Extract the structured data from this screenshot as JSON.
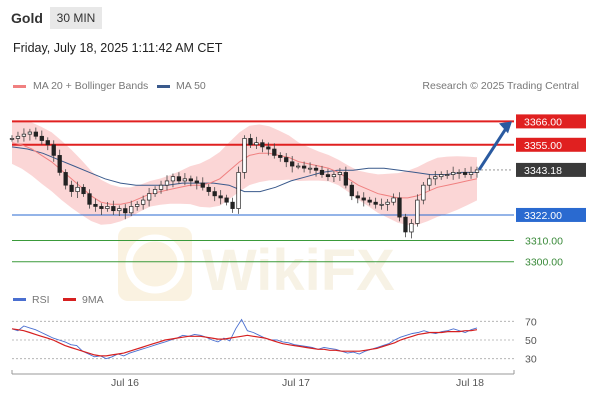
{
  "header": {
    "title": "Gold",
    "timeframe": "30 MIN"
  },
  "timestamp": "Friday, July 18, 2025 1:11:42 AM CET",
  "legend": {
    "ma20_label": "MA 20 + Bollinger Bands",
    "ma50_label": "MA 50",
    "ma20_color": "#f08080",
    "ma50_color": "#3a5a8c",
    "copyright": "Research © 2025 Trading Central"
  },
  "rsi_legend": {
    "rsi_label": "RSI",
    "ma_label": "9MA",
    "rsi_color": "#4a6fd0",
    "ma_color": "#d62020"
  },
  "watermark": "WikiFX",
  "chart_data": [
    {
      "type": "candlestick",
      "title": "Gold 30 MIN",
      "x_tick_labels": [
        "Jul 16",
        "Jul 17",
        "Jul 18"
      ],
      "current_price": {
        "value": 3343.18,
        "label": "3343.18"
      },
      "levels": [
        {
          "value": 3366.0,
          "label": "3366.00",
          "kind": "resistance",
          "color": "#e02020"
        },
        {
          "value": 3355.0,
          "label": "3355.00",
          "kind": "resistance",
          "color": "#e02020"
        },
        {
          "value": 3322.0,
          "label": "3322.00",
          "kind": "pivot",
          "color": "#2a6ad0"
        },
        {
          "value": 3310.0,
          "label": "3310.00",
          "kind": "support",
          "color": "#3a9a3a"
        },
        {
          "value": 3300.0,
          "label": "3300.00",
          "kind": "support",
          "color": "#3a9a3a"
        }
      ],
      "ylim": [
        3290,
        3377
      ],
      "close_series": [
        3358,
        3359,
        3360,
        3361,
        3359,
        3357,
        3355,
        3350,
        3342,
        3336,
        3333,
        3335,
        3332,
        3327,
        3326,
        3325,
        3326,
        3324,
        3325,
        3323,
        3326,
        3327,
        3329,
        3332,
        3334,
        3336,
        3338,
        3340,
        3338,
        3339,
        3338,
        3337,
        3335,
        3333,
        3331,
        3330,
        3328,
        3325,
        3342,
        3358,
        3355,
        3356,
        3354,
        3353,
        3350,
        3349,
        3347,
        3345,
        3345,
        3344,
        3344,
        3343,
        3341,
        3340,
        3341,
        3342,
        3336,
        3331,
        3330,
        3329,
        3328,
        3327,
        3327,
        3328,
        3330,
        3321,
        3314,
        3318,
        3329,
        3336,
        3339,
        3340,
        3341,
        3341,
        3342,
        3342,
        3341,
        3342,
        3343.18
      ],
      "ma20_series": [
        3356,
        3355,
        3353,
        3350,
        3347,
        3343,
        3339,
        3335,
        3331,
        3328,
        3327,
        3327,
        3328,
        3330,
        3332,
        3333,
        3334,
        3335,
        3336,
        3336,
        3337,
        3339,
        3343,
        3347,
        3350,
        3351,
        3351,
        3350,
        3349,
        3347,
        3346,
        3345,
        3344,
        3342,
        3339,
        3336,
        3334,
        3332,
        3331,
        3330,
        3330,
        3331,
        3333,
        3335,
        3336,
        3337,
        3338,
        3339
      ],
      "ma50_series": [
        3354,
        3353,
        3351,
        3348,
        3345,
        3342,
        3339,
        3337,
        3336,
        3336,
        3336,
        3337,
        3337,
        3337,
        3336,
        3333,
        3333,
        3335,
        3338,
        3340,
        3342,
        3343,
        3343,
        3344,
        3344,
        3343,
        3342,
        3341,
        3341,
        3342,
        3342
      ],
      "projection": {
        "from": 3343.18,
        "to": 3366.0
      }
    },
    {
      "type": "line",
      "title": "RSI",
      "y_tick_labels": [
        "70",
        "50",
        "30"
      ],
      "ylim": [
        20,
        80
      ],
      "rsi_series": [
        62,
        60,
        65,
        63,
        61,
        58,
        55,
        52,
        50,
        48,
        45,
        44,
        38,
        35,
        32,
        33,
        30,
        32,
        35,
        33,
        36,
        38,
        40,
        42,
        44,
        46,
        48,
        50,
        52,
        55,
        54,
        56,
        55,
        53,
        50,
        48,
        52,
        49,
        62,
        72,
        60,
        58,
        55,
        52,
        50,
        50,
        48,
        47,
        45,
        44,
        43,
        42,
        40,
        42,
        41,
        40,
        38,
        36,
        37,
        35,
        38,
        40,
        42,
        44,
        46,
        50,
        53,
        55,
        57,
        58,
        60,
        58,
        57,
        59,
        60,
        62,
        60,
        58,
        61,
        63
      ],
      "ma9_series": [
        62,
        61,
        60,
        58,
        56,
        54,
        52,
        50,
        47,
        44,
        42,
        40,
        38,
        36,
        34,
        33,
        33,
        34,
        35,
        36,
        38,
        40,
        42,
        44,
        46,
        48,
        50,
        51,
        52,
        53,
        54,
        54,
        54,
        53,
        52,
        51,
        51,
        52,
        53,
        54,
        55,
        54,
        53,
        52,
        50,
        48,
        46,
        45,
        44,
        43,
        42,
        41,
        40,
        40,
        39,
        39,
        38,
        38,
        38,
        38,
        39,
        40,
        41,
        43,
        45,
        47,
        50,
        52,
        54,
        56,
        57,
        58,
        58,
        58,
        59,
        59,
        59,
        60,
        60,
        61
      ]
    }
  ]
}
